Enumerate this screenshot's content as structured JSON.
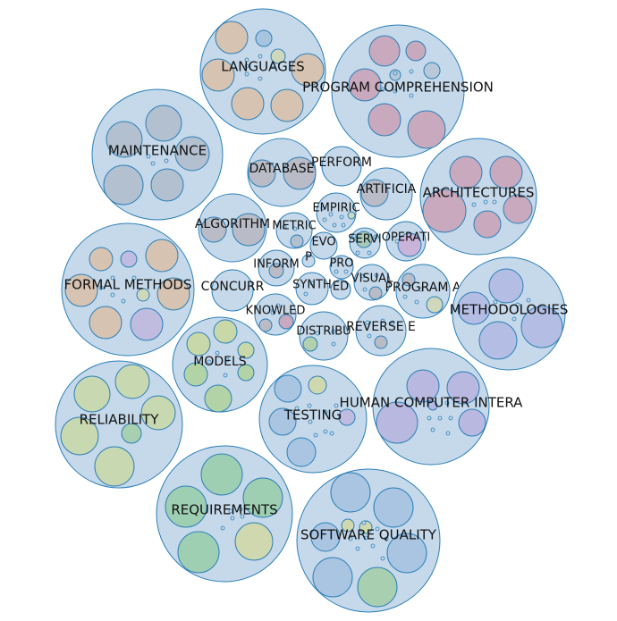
{
  "theme": {
    "outer_fill": "#c5d9ea",
    "outer_stroke": "#2c7fb8",
    "inner_stroke": "#2c7fb8",
    "label_color": "#111111"
  },
  "clusters": [
    {
      "key": "languages",
      "label": "LANGUAGES",
      "inner": [
        [
          "#d7c3b1",
          true
        ],
        [
          "#d7c3b1",
          true
        ],
        [
          "#d7c3b1",
          true
        ],
        [
          "#d7c3b1",
          true
        ],
        [
          "#d7c3b1",
          true
        ],
        [
          "#a8c5e0",
          false
        ],
        [
          "#d0d8bb",
          false
        ]
      ]
    },
    {
      "key": "program-comprehension",
      "label": "PROGRAM COMPREHENSION",
      "inner": [
        [
          "#c9a9bd",
          true
        ],
        [
          "#c9a9bd",
          true
        ],
        [
          "#c9a9bd",
          true
        ],
        [
          "#c9a9bd",
          true
        ],
        [
          "#c9a9bd",
          true
        ],
        [
          "#b8c8d8",
          false
        ],
        [
          "#b8c8d8",
          false
        ]
      ]
    },
    {
      "key": "maintenance",
      "label": "MAINTENANCE",
      "inner": [
        [
          "#b2c0d0",
          true
        ],
        [
          "#b2c0d0",
          true
        ],
        [
          "#b2c0d0",
          true
        ],
        [
          "#b2c0d0",
          true
        ],
        [
          "#b2c0d0",
          true
        ]
      ]
    },
    {
      "key": "database",
      "label": "DATABASE",
      "inner": [
        [
          "#b9bcc6",
          true
        ],
        [
          "#b9bcc6",
          true
        ]
      ]
    },
    {
      "key": "perform",
      "label": "PERFORM",
      "inner": []
    },
    {
      "key": "artificia",
      "label": "ARTIFICIA",
      "inner": [
        [
          "#b9bcc6",
          true
        ]
      ]
    },
    {
      "key": "architectures",
      "label": "ARCHITECTURES",
      "inner": [
        [
          "#c9a9bd",
          true
        ],
        [
          "#c9a9bd",
          true
        ],
        [
          "#c9a9bd",
          true
        ],
        [
          "#c9a9bd",
          true
        ],
        [
          "#c9a9bd",
          true
        ]
      ]
    },
    {
      "key": "algorithm",
      "label": "ALGORITHM",
      "inner": [
        [
          "#b9bcc6",
          true
        ],
        [
          "#b9bcc6",
          true
        ]
      ]
    },
    {
      "key": "metric",
      "label": "METRIC",
      "inner": [
        [
          "#b2c0d0",
          false
        ]
      ]
    },
    {
      "key": "empiric",
      "label": "EMPIRIC",
      "inner": [
        [
          "#d0d8bb",
          false
        ]
      ]
    },
    {
      "key": "evo",
      "label": "EVO",
      "inner": []
    },
    {
      "key": "servi",
      "label": "SERVI",
      "inner": [
        [
          "#a8c9b8",
          false
        ]
      ]
    },
    {
      "key": "operati",
      "label": "OPERATI",
      "inner": [
        [
          "#c9b3d8",
          true
        ]
      ]
    },
    {
      "key": "formal-methods",
      "label": "FORMAL METHODS",
      "inner": [
        [
          "#d7c3b1",
          true
        ],
        [
          "#d7c3b1",
          true
        ],
        [
          "#d7c3b1",
          true
        ],
        [
          "#d7c3b1",
          true
        ],
        [
          "#d7c3b1",
          true
        ],
        [
          "#c0bce0",
          false
        ],
        [
          "#c0bce0",
          false
        ],
        [
          "#d0d8bb",
          false
        ]
      ]
    },
    {
      "key": "inform",
      "label": "INFORM",
      "inner": [
        [
          "#b9bcc6",
          false
        ]
      ]
    },
    {
      "key": "p",
      "label": "P",
      "inner": []
    },
    {
      "key": "pro",
      "label": "PRO",
      "inner": []
    },
    {
      "key": "concurr",
      "label": "CONCURR",
      "inner": []
    },
    {
      "key": "synth",
      "label": "SYNTH",
      "inner": []
    },
    {
      "key": "ed",
      "label": "ED",
      "inner": []
    },
    {
      "key": "visual",
      "label": "VISUAL",
      "inner": [
        [
          "#b9bcc6",
          false
        ]
      ]
    },
    {
      "key": "program-a",
      "label": "PROGRAM A",
      "inner": [
        [
          "#b9bcc6",
          false
        ],
        [
          "#d0d8bb",
          false
        ]
      ]
    },
    {
      "key": "methodologies",
      "label": "METHODOLOGIES",
      "inner": [
        [
          "#b4bde3",
          true
        ],
        [
          "#b4bde3",
          true
        ],
        [
          "#b4bde3",
          true
        ],
        [
          "#b4bde3",
          true
        ]
      ]
    },
    {
      "key": "knowled",
      "label": "KNOWLED",
      "inner": [
        [
          "#c9a9bd",
          false
        ],
        [
          "#b9bcc6",
          false
        ]
      ]
    },
    {
      "key": "distribu",
      "label": "DISTRIBU",
      "inner": [
        [
          "#b2cfae",
          false
        ]
      ]
    },
    {
      "key": "reverse-e",
      "label": "REVERSE E",
      "inner": [
        [
          "#b9bcc6",
          false
        ]
      ]
    },
    {
      "key": "models",
      "label": "MODELS",
      "inner": [
        [
          "#c8d8a8",
          true
        ],
        [
          "#c8d8a8",
          true
        ],
        [
          "#c8d8a8",
          true
        ],
        [
          "#b2d3a6",
          true
        ],
        [
          "#b2d3a6",
          true
        ],
        [
          "#b2d3a6",
          true
        ]
      ]
    },
    {
      "key": "reliability",
      "label": "RELIABILITY",
      "inner": [
        [
          "#c8d8b0",
          true
        ],
        [
          "#c8d8b0",
          true
        ],
        [
          "#c8d8b0",
          true
        ],
        [
          "#c8d8b0",
          true
        ],
        [
          "#c8d8b0",
          true
        ],
        [
          "#a8cfb0",
          false
        ]
      ]
    },
    {
      "key": "testing",
      "label": "TESTING",
      "inner": [
        [
          "#a9c5e2",
          true
        ],
        [
          "#a9c5e2",
          true
        ],
        [
          "#a9c5e2",
          true
        ],
        [
          "#d0d8b0",
          false
        ],
        [
          "#c0bce0",
          false
        ]
      ]
    },
    {
      "key": "human-computer-intera",
      "label": "HUMAN COMPUTER INTERA",
      "inner": [
        [
          "#b8b8e0",
          true
        ],
        [
          "#b8b8e0",
          true
        ],
        [
          "#b8b8e0",
          true
        ],
        [
          "#b8b8e0",
          true
        ],
        [
          "#b8b8e0",
          true
        ]
      ]
    },
    {
      "key": "requirements",
      "label": "REQUIREMENTS",
      "inner": [
        [
          "#9fcfb2",
          true
        ],
        [
          "#9fcfb2",
          true
        ],
        [
          "#9fcfb2",
          true
        ],
        [
          "#9fcfb2",
          true
        ],
        [
          "#d0d8b0",
          false
        ]
      ]
    },
    {
      "key": "software-quality",
      "label": "SOFTWARE QUALITY",
      "inner": [
        [
          "#a9c5e2",
          true
        ],
        [
          "#a9c5e2",
          true
        ],
        [
          "#a9c5e2",
          true
        ],
        [
          "#a9c5e2",
          true
        ],
        [
          "#a9c5e2",
          true
        ],
        [
          "#a8cfb0",
          false
        ],
        [
          "#d0d8b0",
          false
        ],
        [
          "#d0d8b0",
          false
        ]
      ]
    }
  ]
}
